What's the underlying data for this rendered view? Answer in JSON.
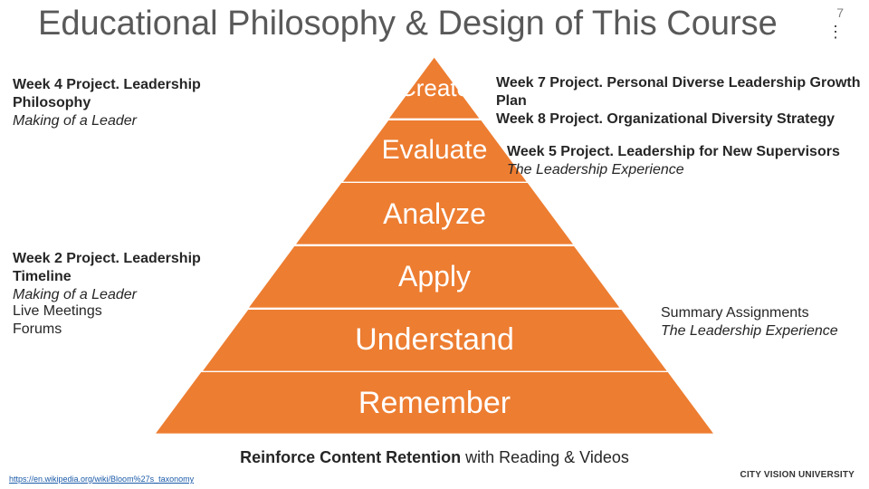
{
  "page_number": "7",
  "title": "Educational Philosophy & Design of This Course",
  "pyramid": {
    "type": "pyramid",
    "fill": "#ed7d31",
    "stroke": "#ffffff",
    "stroke_width": 2,
    "text_color": "#ffffff",
    "base_width": 620,
    "total_height": 418,
    "segments": [
      {
        "label": "Create",
        "fontsize": 26
      },
      {
        "label": "Evaluate",
        "fontsize": 30
      },
      {
        "label": "Analyze",
        "fontsize": 32
      },
      {
        "label": "Apply",
        "fontsize": 32
      },
      {
        "label": "Understand",
        "fontsize": 34
      },
      {
        "label": "Remember",
        "fontsize": 34
      }
    ]
  },
  "annotations": {
    "top_left": {
      "line1": "Week 4 Project. Leadership Philosophy",
      "line2": "Making of a Leader"
    },
    "top_right": {
      "line1": "Week 7 Project. Personal Diverse Leadership Growth Plan",
      "line2": "Week 8 Project. Organizational Diversity Strategy"
    },
    "evaluate_right": {
      "line1": "Week 5 Project. Leadership for New Supervisors",
      "line2": "The Leadership Experience"
    },
    "apply_left_1": {
      "line1": "Week 2 Project. Leadership Timeline",
      "line2": "Making of a Leader"
    },
    "apply_left_2": {
      "line1": "Live Meetings",
      "line2": "Forums"
    },
    "understand_right": {
      "line1": "Summary Assignments",
      "line2": "The Leadership Experience"
    }
  },
  "footer": {
    "bold": "Reinforce Content Retention",
    "rest": " with Reading & Videos"
  },
  "link_text": "https://en.wikipedia.org/wiki/Bloom%27s_taxonomy",
  "brand": "CITY VISION UNIVERSITY",
  "colors": {
    "title": "#595959",
    "body_text": "#262626",
    "background": "#ffffff",
    "link": "#1a5aa8"
  }
}
